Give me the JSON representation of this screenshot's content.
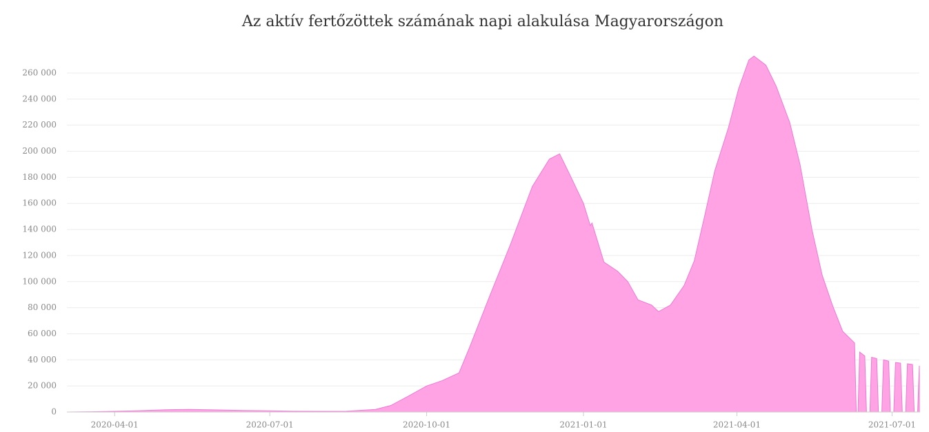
{
  "chart_data": {
    "type": "area",
    "title": "Az aktív fertőzöttek számának napi alakulása Magyarországon",
    "color": "#ffa3e4",
    "line_color": "#ee78d6",
    "grid": true,
    "x": [
      "2020-03-04",
      "2020-03-18",
      "2020-04-01",
      "2020-04-15",
      "2020-05-01",
      "2020-05-15",
      "2020-06-01",
      "2020-06-15",
      "2020-07-01",
      "2020-07-15",
      "2020-08-01",
      "2020-08-15",
      "2020-09-01",
      "2020-09-10",
      "2020-09-20",
      "2020-10-01",
      "2020-10-10",
      "2020-10-20",
      "2020-10-26",
      "2020-11-07",
      "2020-11-19",
      "2020-12-02",
      "2020-12-12",
      "2020-12-18",
      "2020-12-24",
      "2021-01-01",
      "2021-01-05",
      "2021-01-06",
      "2021-01-13",
      "2021-01-21",
      "2021-01-27",
      "2021-02-02",
      "2021-02-10",
      "2021-02-14",
      "2021-02-21",
      "2021-03-01",
      "2021-03-07",
      "2021-03-13",
      "2021-03-19",
      "2021-03-27",
      "2021-04-02",
      "2021-04-08",
      "2021-04-11",
      "2021-04-18",
      "2021-04-24",
      "2021-05-02",
      "2021-05-08",
      "2021-05-15",
      "2021-05-21",
      "2021-05-27",
      "2021-06-02",
      "2021-06-09",
      "2021-06-10",
      "2021-06-11",
      "2021-06-12",
      "2021-06-15",
      "2021-06-16",
      "2021-06-18",
      "2021-06-19",
      "2021-06-22",
      "2021-06-23",
      "2021-06-25",
      "2021-06-26",
      "2021-06-29",
      "2021-06-30",
      "2021-07-02",
      "2021-07-03",
      "2021-07-06",
      "2021-07-07",
      "2021-07-09",
      "2021-07-10",
      "2021-07-13",
      "2021-07-14",
      "2021-07-16",
      "2021-07-17"
    ],
    "values": [
      0,
      200,
      500,
      1000,
      1700,
      2000,
      1600,
      1200,
      900,
      600,
      500,
      600,
      2000,
      5000,
      12000,
      20000,
      24000,
      30000,
      49000,
      89000,
      128000,
      173000,
      194000,
      198000,
      182000,
      160000,
      143000,
      145000,
      115000,
      108000,
      100000,
      86000,
      82000,
      77000,
      82000,
      97000,
      116000,
      150000,
      185000,
      218000,
      248000,
      270000,
      273000,
      266000,
      250000,
      222000,
      190000,
      140000,
      105000,
      82000,
      62000,
      53000,
      0,
      0,
      46000,
      43000,
      0,
      0,
      42000,
      41000,
      0,
      0,
      40000,
      39000,
      0,
      0,
      38000,
      37500,
      0,
      0,
      37000,
      36500,
      0,
      0,
      35500
    ],
    "xlim": [
      "2020-03-04",
      "2021-07-17"
    ],
    "xticks": [
      "2020-04-01",
      "2020-07-01",
      "2020-10-01",
      "2021-01-01",
      "2021-04-01",
      "2021-07-01"
    ],
    "ylim": [
      0,
      275000
    ],
    "yticks": [
      0,
      {
        "value": 20000,
        "label": "20 000"
      },
      {
        "value": 40000,
        "label": "40 000"
      },
      {
        "value": 60000,
        "label": "60 000"
      },
      {
        "value": 80000,
        "label": "80 000"
      },
      {
        "value": 100000,
        "label": "100 000"
      },
      {
        "value": 120000,
        "label": "120 000"
      },
      {
        "value": 140000,
        "label": "140 000"
      },
      {
        "value": 160000,
        "label": "160 000"
      },
      {
        "value": 180000,
        "label": "180 000"
      },
      {
        "value": 200000,
        "label": "200 000"
      },
      {
        "value": 220000,
        "label": "220 000"
      },
      {
        "value": 240000,
        "label": "240 000"
      },
      {
        "value": 260000,
        "label": "260 000"
      }
    ]
  }
}
